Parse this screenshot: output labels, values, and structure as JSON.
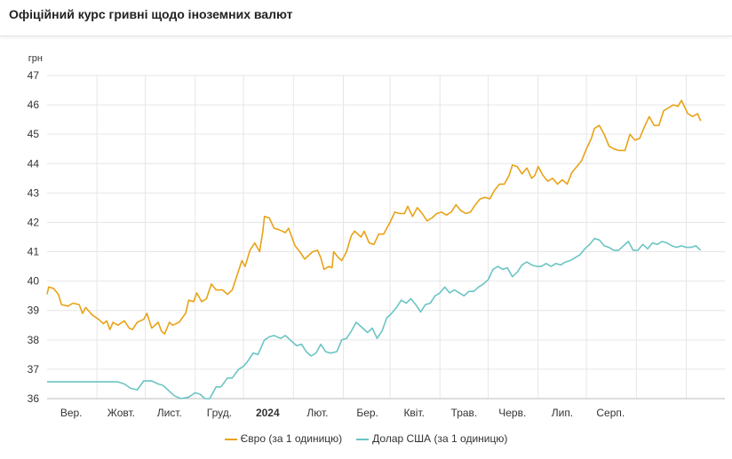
{
  "header": {
    "title": "Офіційний курс гривні щодо іноземних валют"
  },
  "chart_data": {
    "type": "line",
    "ylabel": "грн",
    "ylim": [
      36,
      47
    ],
    "yticks": [
      36,
      37,
      38,
      39,
      40,
      41,
      42,
      43,
      44,
      45,
      46,
      47
    ],
    "xlim": [
      "2023-08-01",
      "2024-09-25"
    ],
    "xticks": [
      {
        "date": "2023-08-16",
        "label": "Вер.",
        "bold": false
      },
      {
        "date": "2023-09-16",
        "label": "Жовт.",
        "bold": false
      },
      {
        "date": "2023-10-16",
        "label": "Лист.",
        "bold": false
      },
      {
        "date": "2023-11-16",
        "label": "Груд.",
        "bold": false
      },
      {
        "date": "2023-12-16",
        "label": "2024",
        "bold": true
      },
      {
        "date": "2024-01-16",
        "label": "Лют.",
        "bold": false
      },
      {
        "date": "2024-02-16",
        "label": "Бер.",
        "bold": false
      },
      {
        "date": "2024-03-16",
        "label": "Квіт.",
        "bold": false
      },
      {
        "date": "2024-04-16",
        "label": "Трав.",
        "bold": false
      },
      {
        "date": "2024-05-16",
        "label": "Черв.",
        "bold": false
      },
      {
        "date": "2024-06-16",
        "label": "Лип.",
        "bold": false
      },
      {
        "date": "2024-07-16",
        "label": "Серп.",
        "bold": false
      }
    ],
    "gridlines": [
      "2023-09-01",
      "2023-10-01",
      "2023-11-01",
      "2023-12-01",
      "2024-01-01",
      "2024-02-01",
      "2024-03-01",
      "2024-04-01",
      "2024-05-01",
      "2024-06-01",
      "2024-07-01",
      "2024-08-01",
      "2024-09-01"
    ],
    "series": [
      {
        "name": "Євро (за 1 одиницю)",
        "color": "#e8a317",
        "points": [
          [
            "2023-08-01",
            39.55
          ],
          [
            "2023-08-02",
            39.8
          ],
          [
            "2023-08-05",
            39.75
          ],
          [
            "2023-08-08",
            39.55
          ],
          [
            "2023-08-10",
            39.2
          ],
          [
            "2023-08-14",
            39.15
          ],
          [
            "2023-08-17",
            39.25
          ],
          [
            "2023-08-21",
            39.2
          ],
          [
            "2023-08-23",
            38.9
          ],
          [
            "2023-08-25",
            39.1
          ],
          [
            "2023-08-29",
            38.85
          ],
          [
            "2023-09-02",
            38.7
          ],
          [
            "2023-09-05",
            38.55
          ],
          [
            "2023-09-07",
            38.65
          ],
          [
            "2023-09-09",
            38.35
          ],
          [
            "2023-09-11",
            38.6
          ],
          [
            "2023-09-14",
            38.5
          ],
          [
            "2023-09-18",
            38.65
          ],
          [
            "2023-09-21",
            38.4
          ],
          [
            "2023-09-23",
            38.35
          ],
          [
            "2023-09-26",
            38.6
          ],
          [
            "2023-09-30",
            38.7
          ],
          [
            "2023-10-02",
            38.9
          ],
          [
            "2023-10-05",
            38.4
          ],
          [
            "2023-10-09",
            38.6
          ],
          [
            "2023-10-11",
            38.3
          ],
          [
            "2023-10-13",
            38.2
          ],
          [
            "2023-10-16",
            38.6
          ],
          [
            "2023-10-18",
            38.5
          ],
          [
            "2023-10-22",
            38.6
          ],
          [
            "2023-10-26",
            38.9
          ],
          [
            "2023-10-28",
            39.35
          ],
          [
            "2023-10-31",
            39.3
          ],
          [
            "2023-11-02",
            39.6
          ],
          [
            "2023-11-05",
            39.3
          ],
          [
            "2023-11-08",
            39.4
          ],
          [
            "2023-11-11",
            39.9
          ],
          [
            "2023-11-14",
            39.7
          ],
          [
            "2023-11-18",
            39.7
          ],
          [
            "2023-11-21",
            39.55
          ],
          [
            "2023-11-24",
            39.7
          ],
          [
            "2023-11-27",
            40.2
          ],
          [
            "2023-11-30",
            40.7
          ],
          [
            "2023-12-02",
            40.5
          ],
          [
            "2023-12-05",
            41.05
          ],
          [
            "2023-12-08",
            41.3
          ],
          [
            "2023-12-11",
            41.0
          ],
          [
            "2023-12-13",
            41.7
          ],
          [
            "2023-12-14",
            42.2
          ],
          [
            "2023-12-17",
            42.15
          ],
          [
            "2023-12-20",
            41.8
          ],
          [
            "2023-12-23",
            41.75
          ],
          [
            "2023-12-27",
            41.65
          ],
          [
            "2023-12-29",
            41.8
          ],
          [
            "2024-01-02",
            41.2
          ],
          [
            "2024-01-05",
            41.0
          ],
          [
            "2024-01-08",
            40.75
          ],
          [
            "2024-01-10",
            40.85
          ],
          [
            "2024-01-13",
            41.0
          ],
          [
            "2024-01-16",
            41.05
          ],
          [
            "2024-01-18",
            40.8
          ],
          [
            "2024-01-20",
            40.4
          ],
          [
            "2024-01-23",
            40.5
          ],
          [
            "2024-01-25",
            40.45
          ],
          [
            "2024-01-26",
            41.0
          ],
          [
            "2024-01-29",
            40.8
          ],
          [
            "2024-01-31",
            40.7
          ],
          [
            "2024-02-03",
            41.0
          ],
          [
            "2024-02-06",
            41.55
          ],
          [
            "2024-02-08",
            41.7
          ],
          [
            "2024-02-12",
            41.5
          ],
          [
            "2024-02-14",
            41.7
          ],
          [
            "2024-02-17",
            41.3
          ],
          [
            "2024-02-20",
            41.25
          ],
          [
            "2024-02-23",
            41.6
          ],
          [
            "2024-02-26",
            41.6
          ],
          [
            "2024-02-28",
            41.8
          ],
          [
            "2024-03-01",
            42.0
          ],
          [
            "2024-03-04",
            42.35
          ],
          [
            "2024-03-07",
            42.3
          ],
          [
            "2024-03-10",
            42.3
          ],
          [
            "2024-03-12",
            42.55
          ],
          [
            "2024-03-15",
            42.2
          ],
          [
            "2024-03-18",
            42.5
          ],
          [
            "2024-03-21",
            42.3
          ],
          [
            "2024-03-24",
            42.05
          ],
          [
            "2024-03-27",
            42.15
          ],
          [
            "2024-03-30",
            42.3
          ],
          [
            "2024-04-02",
            42.35
          ],
          [
            "2024-04-05",
            42.25
          ],
          [
            "2024-04-08",
            42.35
          ],
          [
            "2024-04-11",
            42.6
          ],
          [
            "2024-04-14",
            42.4
          ],
          [
            "2024-04-17",
            42.3
          ],
          [
            "2024-04-20",
            42.35
          ],
          [
            "2024-04-23",
            42.6
          ],
          [
            "2024-04-26",
            42.8
          ],
          [
            "2024-04-29",
            42.85
          ],
          [
            "2024-05-02",
            42.8
          ],
          [
            "2024-05-05",
            43.1
          ],
          [
            "2024-05-08",
            43.3
          ],
          [
            "2024-05-11",
            43.3
          ],
          [
            "2024-05-14",
            43.6
          ],
          [
            "2024-05-16",
            43.95
          ],
          [
            "2024-05-19",
            43.9
          ],
          [
            "2024-05-22",
            43.65
          ],
          [
            "2024-05-25",
            43.85
          ],
          [
            "2024-05-28",
            43.5
          ],
          [
            "2024-05-30",
            43.6
          ],
          [
            "2024-06-01",
            43.9
          ],
          [
            "2024-06-04",
            43.6
          ],
          [
            "2024-06-07",
            43.4
          ],
          [
            "2024-06-10",
            43.5
          ],
          [
            "2024-06-13",
            43.3
          ],
          [
            "2024-06-16",
            43.45
          ],
          [
            "2024-06-19",
            43.3
          ],
          [
            "2024-06-22",
            43.7
          ],
          [
            "2024-06-25",
            43.9
          ],
          [
            "2024-06-28",
            44.1
          ],
          [
            "2024-07-01",
            44.5
          ],
          [
            "2024-07-04",
            44.85
          ],
          [
            "2024-07-06",
            45.2
          ],
          [
            "2024-07-09",
            45.3
          ],
          [
            "2024-07-12",
            45.0
          ],
          [
            "2024-07-15",
            44.6
          ],
          [
            "2024-07-18",
            44.5
          ],
          [
            "2024-07-21",
            44.45
          ],
          [
            "2024-07-25",
            44.45
          ],
          [
            "2024-07-28",
            45.0
          ],
          [
            "2024-07-31",
            44.8
          ],
          [
            "2024-08-03",
            44.85
          ],
          [
            "2024-08-06",
            45.25
          ],
          [
            "2024-08-09",
            45.6
          ],
          [
            "2024-08-12",
            45.3
          ],
          [
            "2024-08-15",
            45.3
          ],
          [
            "2024-08-18",
            45.8
          ],
          [
            "2024-08-21",
            45.9
          ],
          [
            "2024-08-24",
            46.0
          ],
          [
            "2024-08-27",
            45.95
          ],
          [
            "2024-08-29",
            46.15
          ],
          [
            "2024-09-02",
            45.7
          ],
          [
            "2024-09-05",
            45.6
          ],
          [
            "2024-09-08",
            45.7
          ],
          [
            "2024-09-10",
            45.45
          ]
        ]
      },
      {
        "name": "Долар США (за 1 одиницю)",
        "color": "#6cc4c4",
        "points": [
          [
            "2023-08-01",
            36.57
          ],
          [
            "2023-09-14",
            36.57
          ],
          [
            "2023-09-18",
            36.5
          ],
          [
            "2023-09-22",
            36.35
          ],
          [
            "2023-09-26",
            36.3
          ],
          [
            "2023-09-30",
            36.6
          ],
          [
            "2023-10-05",
            36.6
          ],
          [
            "2023-10-09",
            36.5
          ],
          [
            "2023-10-12",
            36.45
          ],
          [
            "2023-10-15",
            36.3
          ],
          [
            "2023-10-19",
            36.1
          ],
          [
            "2023-10-23",
            36.0
          ],
          [
            "2023-10-28",
            36.05
          ],
          [
            "2023-11-01",
            36.2
          ],
          [
            "2023-11-04",
            36.15
          ],
          [
            "2023-11-07",
            36.0
          ],
          [
            "2023-11-10",
            36.0
          ],
          [
            "2023-11-14",
            36.4
          ],
          [
            "2023-11-17",
            36.4
          ],
          [
            "2023-11-21",
            36.7
          ],
          [
            "2023-11-24",
            36.7
          ],
          [
            "2023-11-28",
            37.0
          ],
          [
            "2023-12-01",
            37.1
          ],
          [
            "2023-12-04",
            37.3
          ],
          [
            "2023-12-07",
            37.55
          ],
          [
            "2023-12-10",
            37.5
          ],
          [
            "2023-12-14",
            38.0
          ],
          [
            "2023-12-17",
            38.1
          ],
          [
            "2023-12-20",
            38.15
          ],
          [
            "2023-12-24",
            38.05
          ],
          [
            "2023-12-27",
            38.15
          ],
          [
            "2023-12-31",
            37.95
          ],
          [
            "2024-01-03",
            37.8
          ],
          [
            "2024-01-06",
            37.85
          ],
          [
            "2024-01-09",
            37.6
          ],
          [
            "2024-01-12",
            37.45
          ],
          [
            "2024-01-15",
            37.55
          ],
          [
            "2024-01-18",
            37.85
          ],
          [
            "2024-01-21",
            37.6
          ],
          [
            "2024-01-24",
            37.55
          ],
          [
            "2024-01-28",
            37.6
          ],
          [
            "2024-01-31",
            38.0
          ],
          [
            "2024-02-03",
            38.05
          ],
          [
            "2024-02-06",
            38.3
          ],
          [
            "2024-02-09",
            38.6
          ],
          [
            "2024-02-12",
            38.45
          ],
          [
            "2024-02-16",
            38.25
          ],
          [
            "2024-02-19",
            38.4
          ],
          [
            "2024-02-22",
            38.05
          ],
          [
            "2024-02-25",
            38.3
          ],
          [
            "2024-02-28",
            38.75
          ],
          [
            "2024-03-02",
            38.9
          ],
          [
            "2024-03-05",
            39.1
          ],
          [
            "2024-03-08",
            39.35
          ],
          [
            "2024-03-11",
            39.25
          ],
          [
            "2024-03-14",
            39.4
          ],
          [
            "2024-03-17",
            39.2
          ],
          [
            "2024-03-20",
            38.95
          ],
          [
            "2024-03-23",
            39.2
          ],
          [
            "2024-03-26",
            39.25
          ],
          [
            "2024-03-29",
            39.5
          ],
          [
            "2024-04-01",
            39.6
          ],
          [
            "2024-04-04",
            39.8
          ],
          [
            "2024-04-07",
            39.6
          ],
          [
            "2024-04-10",
            39.7
          ],
          [
            "2024-04-13",
            39.6
          ],
          [
            "2024-04-16",
            39.5
          ],
          [
            "2024-04-19",
            39.65
          ],
          [
            "2024-04-22",
            39.65
          ],
          [
            "2024-04-25",
            39.8
          ],
          [
            "2024-04-28",
            39.9
          ],
          [
            "2024-05-01",
            40.05
          ],
          [
            "2024-05-04",
            40.4
          ],
          [
            "2024-05-07",
            40.5
          ],
          [
            "2024-05-10",
            40.4
          ],
          [
            "2024-05-13",
            40.45
          ],
          [
            "2024-05-16",
            40.15
          ],
          [
            "2024-05-19",
            40.3
          ],
          [
            "2024-05-22",
            40.55
          ],
          [
            "2024-05-25",
            40.65
          ],
          [
            "2024-05-28",
            40.55
          ],
          [
            "2024-05-31",
            40.5
          ],
          [
            "2024-06-03",
            40.5
          ],
          [
            "2024-06-06",
            40.6
          ],
          [
            "2024-06-09",
            40.5
          ],
          [
            "2024-06-12",
            40.6
          ],
          [
            "2024-06-15",
            40.55
          ],
          [
            "2024-06-18",
            40.65
          ],
          [
            "2024-06-21",
            40.7
          ],
          [
            "2024-06-24",
            40.8
          ],
          [
            "2024-06-27",
            40.9
          ],
          [
            "2024-06-30",
            41.1
          ],
          [
            "2024-07-03",
            41.25
          ],
          [
            "2024-07-06",
            41.45
          ],
          [
            "2024-07-09",
            41.4
          ],
          [
            "2024-07-12",
            41.2
          ],
          [
            "2024-07-15",
            41.15
          ],
          [
            "2024-07-18",
            41.05
          ],
          [
            "2024-07-21",
            41.05
          ],
          [
            "2024-07-24",
            41.2
          ],
          [
            "2024-07-27",
            41.35
          ],
          [
            "2024-07-30",
            41.05
          ],
          [
            "2024-08-02",
            41.05
          ],
          [
            "2024-08-05",
            41.25
          ],
          [
            "2024-08-08",
            41.1
          ],
          [
            "2024-08-11",
            41.3
          ],
          [
            "2024-08-14",
            41.25
          ],
          [
            "2024-08-17",
            41.35
          ],
          [
            "2024-08-20",
            41.3
          ],
          [
            "2024-08-23",
            41.2
          ],
          [
            "2024-08-26",
            41.15
          ],
          [
            "2024-08-29",
            41.2
          ],
          [
            "2024-09-01",
            41.15
          ],
          [
            "2024-09-04",
            41.15
          ],
          [
            "2024-09-07",
            41.2
          ],
          [
            "2024-09-10",
            41.05
          ]
        ]
      }
    ],
    "legend": {
      "position": "bottom"
    }
  }
}
